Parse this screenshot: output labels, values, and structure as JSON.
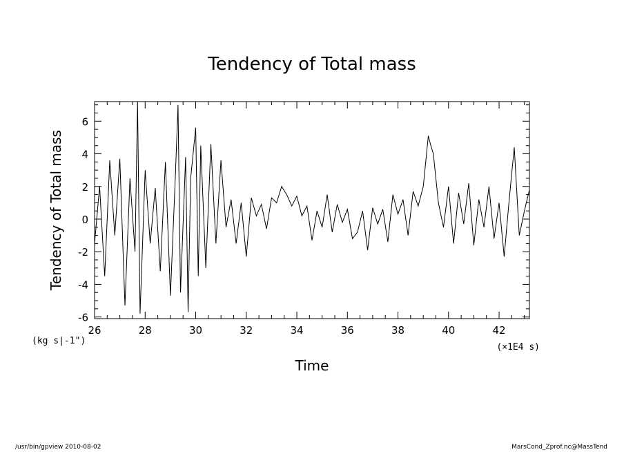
{
  "chart_data": {
    "type": "line",
    "title": "Tendency of Total mass",
    "xlabel": "Time",
    "ylabel": "Tendency of Total mass",
    "x_unit": "(×1E4 s)",
    "y_unit": "(kg s|-1\")",
    "xlim": [
      26,
      43.2
    ],
    "ylim": [
      -6.1,
      7.2
    ],
    "x_ticks": [
      "26",
      "28",
      "30",
      "32",
      "34",
      "36",
      "38",
      "40",
      "42"
    ],
    "y_ticks": [
      "-6",
      "-4",
      "-2",
      "0",
      "2",
      "4",
      "6"
    ],
    "grid": false,
    "series": [
      {
        "x": [
          26.0,
          26.2,
          26.4,
          26.6,
          26.8,
          27.0,
          27.2,
          27.4,
          27.6,
          27.7,
          27.8,
          28.0,
          28.2,
          28.4,
          28.6,
          28.8,
          29.0,
          29.2,
          29.3,
          29.4,
          29.6,
          29.7,
          29.8,
          30.0,
          30.1,
          30.2,
          30.4,
          30.6,
          30.8,
          31.0,
          31.2,
          31.4,
          31.6,
          31.8,
          32.0,
          32.2,
          32.4,
          32.6,
          32.8,
          33.0,
          33.2,
          33.4,
          33.6,
          33.8,
          34.0,
          34.2,
          34.4,
          34.6,
          34.8,
          35.0,
          35.2,
          35.4,
          35.6,
          35.8,
          36.0,
          36.2,
          36.4,
          36.6,
          36.8,
          37.0,
          37.2,
          37.4,
          37.6,
          37.8,
          38.0,
          38.2,
          38.4,
          38.6,
          38.8,
          39.0,
          39.2,
          39.3,
          39.4,
          39.6,
          39.8,
          40.0,
          40.2,
          40.4,
          40.6,
          40.8,
          41.0,
          41.2,
          41.4,
          41.6,
          41.8,
          42.0,
          42.2,
          42.4,
          42.6,
          42.8,
          43.0,
          43.2
        ],
        "y": [
          -1.5,
          2.0,
          -3.5,
          3.6,
          -1.0,
          3.7,
          -5.3,
          2.5,
          -2.0,
          7.2,
          -5.8,
          3.0,
          -1.5,
          1.9,
          -3.2,
          3.5,
          -4.7,
          2.8,
          7.0,
          -4.5,
          3.8,
          -5.7,
          2.5,
          5.6,
          -3.5,
          4.5,
          -3.0,
          4.6,
          -1.5,
          3.6,
          -0.5,
          1.2,
          -1.5,
          1.0,
          -2.3,
          1.3,
          0.2,
          0.9,
          -0.6,
          1.3,
          1.0,
          2.0,
          1.5,
          0.8,
          1.4,
          0.2,
          0.8,
          -1.3,
          0.5,
          -0.5,
          1.5,
          -0.8,
          0.9,
          -0.2,
          0.6,
          -1.2,
          -0.8,
          0.5,
          -1.9,
          0.7,
          -0.3,
          0.6,
          -1.4,
          1.5,
          0.3,
          1.2,
          -1.0,
          1.7,
          0.8,
          2.0,
          5.1,
          4.5,
          4.0,
          1.0,
          -0.5,
          2.0,
          -1.5,
          1.6,
          -0.3,
          2.2,
          -1.6,
          1.2,
          -0.5,
          2.0,
          -1.2,
          1.0,
          -2.3,
          1.2,
          4.4,
          -1.0,
          0.5,
          1.8
        ]
      }
    ],
    "color": "#000000"
  },
  "footer": {
    "left": "/usr/bin/gpview  2010-08-02",
    "right": "MarsCond_Zprof.nc@MassTend"
  }
}
